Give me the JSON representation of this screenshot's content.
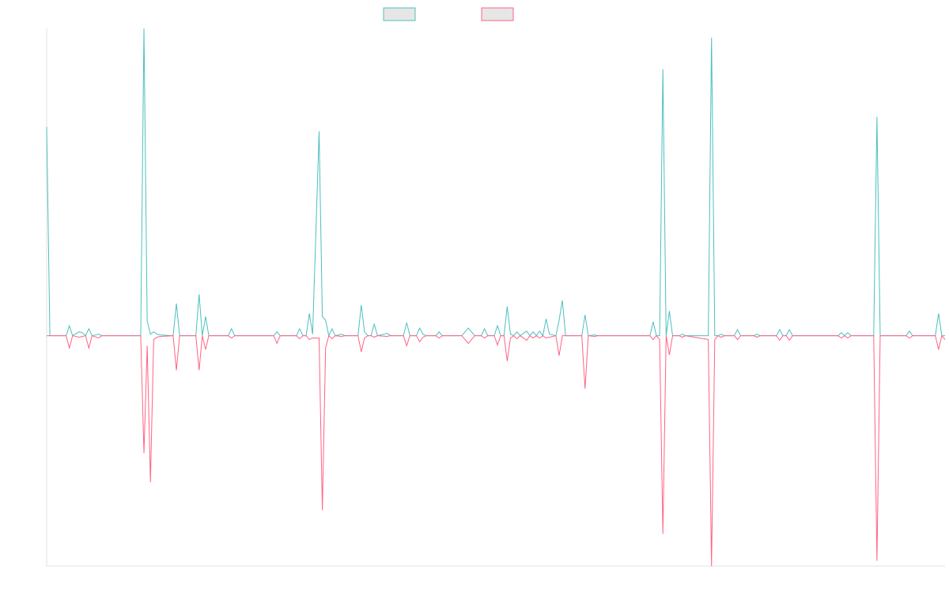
{
  "chart_data": {
    "type": "line",
    "x": [
      0,
      1,
      6,
      7,
      8,
      10,
      11,
      12,
      13,
      14,
      16,
      17,
      29,
      30,
      31,
      32,
      33,
      34,
      35,
      39,
      40,
      41,
      46,
      47,
      48,
      49,
      50,
      56,
      57,
      58,
      70,
      71,
      72,
      77,
      78,
      79,
      80,
      81,
      82,
      84,
      85,
      86,
      87,
      88,
      89,
      91,
      92,
      96,
      97,
      98,
      99,
      100,
      101,
      102,
      105,
      106,
      110,
      111,
      112,
      114,
      115,
      116,
      117,
      120,
      121,
      122,
      128,
      130,
      132,
      134,
      135,
      136,
      138,
      139,
      140,
      141,
      142,
      143,
      144,
      145,
      146,
      148,
      149,
      150,
      151,
      152,
      153,
      154,
      155,
      157,
      158,
      159,
      160,
      165,
      166,
      167,
      169,
      170,
      186,
      187,
      188,
      189,
      190,
      191,
      192,
      193,
      195,
      196,
      197,
      204,
      205,
      206,
      207,
      208,
      209,
      212,
      213,
      214,
      218,
      219,
      220,
      225,
      226,
      227,
      228,
      229,
      230,
      244,
      245,
      246,
      247,
      248,
      255,
      256,
      257,
      265,
      266,
      267,
      274,
      275,
      276,
      277
    ],
    "series": [
      {
        "color": "#4bc0c0",
        "values": [
          272,
          0,
          0,
          13,
          0,
          5,
          4,
          0,
          9,
          0,
          2,
          0,
          0,
          400,
          19,
          2,
          5,
          2,
          1,
          0,
          42,
          0,
          0,
          54,
          0,
          25,
          0,
          0,
          9,
          0,
          0,
          5,
          0,
          0,
          9,
          0,
          0,
          29,
          2,
          266,
          25,
          20,
          0,
          9,
          0,
          2,
          0,
          0,
          40,
          5,
          0,
          0,
          15,
          0,
          3,
          0,
          0,
          17,
          0,
          0,
          10,
          2,
          0,
          0,
          5,
          0,
          0,
          10,
          0,
          0,
          9,
          0,
          0,
          13,
          0,
          0,
          38,
          2,
          0,
          5,
          0,
          6,
          0,
          5,
          0,
          6,
          0,
          22,
          2,
          0,
          20,
          46,
          0,
          0,
          27,
          0,
          1,
          0,
          0,
          18,
          0,
          0,
          347,
          0,
          32,
          0,
          0,
          2,
          0,
          0,
          388,
          0,
          0,
          2,
          0,
          0,
          8,
          0,
          0,
          2,
          0,
          0,
          8,
          0,
          0,
          8,
          0,
          0,
          4,
          0,
          4,
          0,
          0,
          285,
          0,
          0,
          6,
          0,
          0,
          29,
          0,
          0
        ]
      },
      {
        "color": "#ff6384",
        "values": [
          0,
          0,
          0,
          -16,
          0,
          -2,
          -1,
          0,
          -16,
          0,
          -3,
          0,
          0,
          -153,
          -13,
          -191,
          -5,
          -2,
          -1,
          0,
          -45,
          0,
          0,
          -45,
          0,
          -18,
          0,
          0,
          -3,
          0,
          0,
          -10,
          0,
          0,
          -4,
          0,
          0,
          -5,
          -3,
          -3,
          -227,
          -16,
          0,
          -4,
          0,
          -1,
          0,
          0,
          -21,
          -3,
          0,
          0,
          -2,
          0,
          -1,
          0,
          0,
          -13,
          0,
          0,
          -8,
          -2,
          0,
          0,
          -3,
          0,
          0,
          -10,
          0,
          0,
          -3,
          0,
          0,
          -12,
          0,
          0,
          -33,
          -3,
          0,
          -4,
          0,
          -6,
          0,
          -3,
          0,
          -3,
          0,
          -3,
          -2,
          0,
          -26,
          0,
          0,
          0,
          -69,
          0,
          -1,
          0,
          0,
          -5,
          0,
          -5,
          -258,
          0,
          -25,
          0,
          0,
          -2,
          0,
          -5,
          -300,
          -5,
          0,
          -2,
          0,
          0,
          -5,
          0,
          0,
          -2,
          0,
          0,
          -6,
          0,
          0,
          -6,
          0,
          0,
          -3,
          0,
          -3,
          0,
          0,
          -293,
          0,
          0,
          -3,
          0,
          0,
          -18,
          0,
          -5
        ]
      }
    ],
    "xlim": [
      0,
      277
    ],
    "ylim": [
      -300,
      400
    ],
    "legend": "top"
  }
}
